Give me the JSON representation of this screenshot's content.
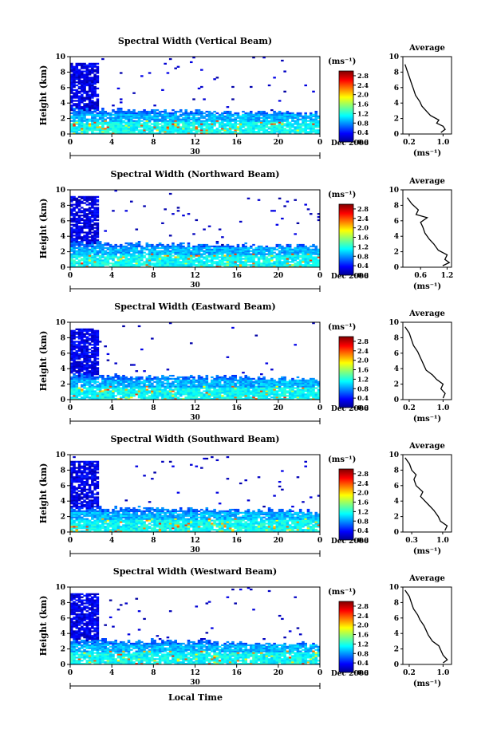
{
  "figure": {
    "xlabel": "Local Time",
    "colorbar_unit": "(ms⁻¹)",
    "side_title": "Average",
    "side_xlabel": "(ms⁻¹)",
    "ylabel": "Height (km)",
    "date_label": "Dec 2006",
    "day_label": "30"
  },
  "chart_data": [
    {
      "type": "heatmap",
      "title": "Spectral Width (Vertical Beam)",
      "xlabel": "Local Time",
      "ylabel": "Height (km)",
      "xlim": [
        0,
        24
      ],
      "ylim": [
        0,
        10
      ],
      "x_ticks": [
        "0",
        "4",
        "8",
        "12",
        "16",
        "20",
        "0"
      ],
      "y_ticks": [
        "0",
        "2",
        "4",
        "6",
        "8",
        "10"
      ],
      "colorbar": {
        "label": "(ms⁻¹)",
        "range": [
          0,
          3.0
        ],
        "ticks": [
          "2.8",
          "2.4",
          "2.0",
          "1.6",
          "1.2",
          "0.8",
          "0.4",
          "0.0"
        ]
      },
      "average_profile": {
        "title": "Average",
        "xlabel": "(ms⁻¹)",
        "x_ticks": [
          "0.2",
          "1.0"
        ],
        "xlim": [
          0.05,
          1.2
        ],
        "points": [
          [
            0.95,
            0.2
          ],
          [
            1.05,
            0.6
          ],
          [
            1.0,
            1.0
          ],
          [
            0.85,
            1.4
          ],
          [
            0.9,
            1.8
          ],
          [
            0.7,
            2.4
          ],
          [
            0.6,
            3.0
          ],
          [
            0.5,
            3.6
          ],
          [
            0.45,
            4.2
          ],
          [
            0.35,
            5.0
          ],
          [
            0.3,
            5.8
          ],
          [
            0.25,
            6.6
          ],
          [
            0.2,
            7.4
          ],
          [
            0.15,
            8.2
          ],
          [
            0.1,
            9.0
          ]
        ]
      }
    },
    {
      "type": "heatmap",
      "title": "Spectral Width (Northward Beam)",
      "xlabel": "Local Time",
      "ylabel": "Height (km)",
      "xlim": [
        0,
        24
      ],
      "ylim": [
        0,
        10
      ],
      "x_ticks": [
        "0",
        "4",
        "8",
        "12",
        "16",
        "20",
        "0"
      ],
      "y_ticks": [
        "0",
        "2",
        "4",
        "6",
        "8",
        "10"
      ],
      "colorbar": {
        "label": "(ms⁻¹)",
        "range": [
          0,
          3.0
        ],
        "ticks": [
          "2.8",
          "2.4",
          "2.0",
          "1.6",
          "1.2",
          "0.8",
          "0.4",
          "0.0"
        ]
      },
      "average_profile": {
        "title": "Average",
        "xlabel": "(ms⁻¹)",
        "x_ticks": [
          "0.6",
          "1.2"
        ],
        "xlim": [
          0.2,
          1.3
        ],
        "points": [
          [
            1.1,
            0.2
          ],
          [
            1.25,
            0.6
          ],
          [
            1.15,
            1.0
          ],
          [
            1.2,
            1.6
          ],
          [
            1.0,
            2.2
          ],
          [
            0.9,
            3.0
          ],
          [
            0.8,
            3.6
          ],
          [
            0.7,
            4.4
          ],
          [
            0.65,
            5.2
          ],
          [
            0.6,
            5.8
          ],
          [
            0.75,
            6.4
          ],
          [
            0.5,
            6.8
          ],
          [
            0.55,
            7.4
          ],
          [
            0.4,
            8.2
          ],
          [
            0.3,
            9.0
          ]
        ]
      }
    },
    {
      "type": "heatmap",
      "title": "Spectral Width (Eastward Beam)",
      "xlabel": "Local Time",
      "ylabel": "Height (km)",
      "xlim": [
        0,
        24
      ],
      "ylim": [
        0,
        10
      ],
      "x_ticks": [
        "0",
        "4",
        "8",
        "12",
        "16",
        "20",
        "0"
      ],
      "y_ticks": [
        "0",
        "2",
        "4",
        "6",
        "8",
        "10"
      ],
      "colorbar": {
        "label": "(ms⁻¹)",
        "range": [
          0,
          3.0
        ],
        "ticks": [
          "2.8",
          "2.4",
          "2.0",
          "1.6",
          "1.2",
          "0.8",
          "0.4",
          "0.0"
        ]
      },
      "average_profile": {
        "title": "Average",
        "xlabel": "(ms⁻¹)",
        "x_ticks": [
          "0.2",
          "1.0"
        ],
        "xlim": [
          0.05,
          1.2
        ],
        "points": [
          [
            1.0,
            0.2
          ],
          [
            1.05,
            0.8
          ],
          [
            0.95,
            1.4
          ],
          [
            1.0,
            2.0
          ],
          [
            0.85,
            2.6
          ],
          [
            0.75,
            3.2
          ],
          [
            0.6,
            3.8
          ],
          [
            0.55,
            4.4
          ],
          [
            0.5,
            5.0
          ],
          [
            0.45,
            5.6
          ],
          [
            0.4,
            6.2
          ],
          [
            0.3,
            7.0
          ],
          [
            0.25,
            7.8
          ],
          [
            0.2,
            8.6
          ],
          [
            0.1,
            9.4
          ]
        ]
      }
    },
    {
      "type": "heatmap",
      "title": "Spectral Width (Southward Beam)",
      "xlabel": "Local Time",
      "ylabel": "Height (km)",
      "xlim": [
        0,
        24
      ],
      "ylim": [
        0,
        10
      ],
      "x_ticks": [
        "0",
        "4",
        "8",
        "12",
        "16",
        "20",
        "0"
      ],
      "y_ticks": [
        "0",
        "2",
        "4",
        "6",
        "8",
        "10"
      ],
      "colorbar": {
        "label": "(ms⁻¹)",
        "range": [
          0,
          3.0
        ],
        "ticks": [
          "2.8",
          "2.4",
          "2.0",
          "1.6",
          "1.2",
          "0.8",
          "0.4",
          "0.0"
        ]
      },
      "average_profile": {
        "title": "Average",
        "xlabel": "(ms⁻¹)",
        "x_ticks": [
          "0.3",
          "1.0"
        ],
        "xlim": [
          0.1,
          1.2
        ],
        "points": [
          [
            1.05,
            0.2
          ],
          [
            1.1,
            0.8
          ],
          [
            0.95,
            1.4
          ],
          [
            0.9,
            2.0
          ],
          [
            0.8,
            2.8
          ],
          [
            0.7,
            3.4
          ],
          [
            0.6,
            4.0
          ],
          [
            0.5,
            4.6
          ],
          [
            0.55,
            5.2
          ],
          [
            0.4,
            6.0
          ],
          [
            0.35,
            6.8
          ],
          [
            0.4,
            7.4
          ],
          [
            0.3,
            8.0
          ],
          [
            0.25,
            8.8
          ],
          [
            0.15,
            9.6
          ]
        ]
      }
    },
    {
      "type": "heatmap",
      "title": "Spectral Width (Westward Beam)",
      "xlabel": "Local Time",
      "ylabel": "Height (km)",
      "xlim": [
        0,
        24
      ],
      "ylim": [
        0,
        10
      ],
      "x_ticks": [
        "0",
        "4",
        "8",
        "12",
        "16",
        "20",
        "0"
      ],
      "y_ticks": [
        "0",
        "2",
        "4",
        "6",
        "8",
        "10"
      ],
      "colorbar": {
        "label": "(ms⁻¹)",
        "range": [
          0,
          3.0
        ],
        "ticks": [
          "2.8",
          "2.4",
          "2.0",
          "1.6",
          "1.2",
          "0.8",
          "0.4",
          "0.0"
        ]
      },
      "average_profile": {
        "title": "Average",
        "xlabel": "(ms⁻¹)",
        "x_ticks": [
          "0.2",
          "1.0"
        ],
        "xlim": [
          0.05,
          1.2
        ],
        "points": [
          [
            1.0,
            0.2
          ],
          [
            1.1,
            0.6
          ],
          [
            1.0,
            1.2
          ],
          [
            0.95,
            1.8
          ],
          [
            0.9,
            2.4
          ],
          [
            0.75,
            3.0
          ],
          [
            0.65,
            3.8
          ],
          [
            0.6,
            4.4
          ],
          [
            0.55,
            5.0
          ],
          [
            0.45,
            5.8
          ],
          [
            0.4,
            6.4
          ],
          [
            0.3,
            7.2
          ],
          [
            0.25,
            8.0
          ],
          [
            0.2,
            8.8
          ],
          [
            0.1,
            9.6
          ]
        ]
      }
    }
  ]
}
